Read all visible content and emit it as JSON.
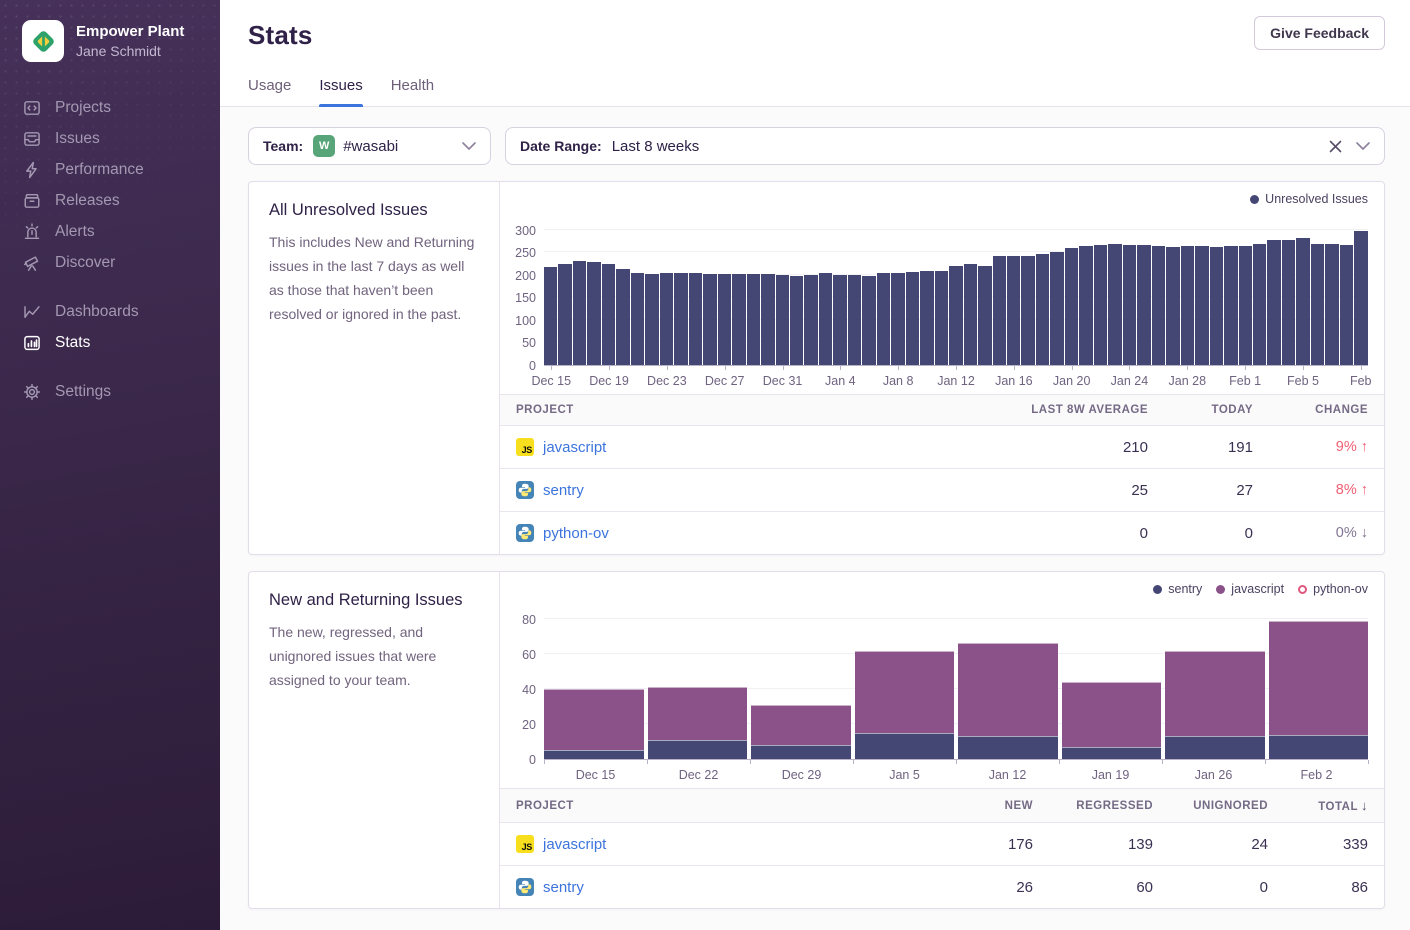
{
  "sidebar": {
    "org_name": "Empower Plant",
    "user_name": "Jane Schmidt",
    "sections": [
      {
        "items": [
          {
            "label": "Projects",
            "icon": "projects-icon",
            "active": false
          },
          {
            "label": "Issues",
            "icon": "issues-icon",
            "active": false
          },
          {
            "label": "Performance",
            "icon": "performance-icon",
            "active": false
          },
          {
            "label": "Releases",
            "icon": "releases-icon",
            "active": false
          },
          {
            "label": "Alerts",
            "icon": "alerts-icon",
            "active": false
          },
          {
            "label": "Discover",
            "icon": "discover-icon",
            "active": false
          }
        ]
      },
      {
        "items": [
          {
            "label": "Dashboards",
            "icon": "dashboards-icon",
            "active": false
          },
          {
            "label": "Stats",
            "icon": "stats-icon",
            "active": true
          }
        ]
      },
      {
        "items": [
          {
            "label": "Settings",
            "icon": "settings-icon",
            "active": false
          }
        ]
      }
    ]
  },
  "header": {
    "title": "Stats",
    "feedback_button": "Give Feedback"
  },
  "tabs": [
    {
      "label": "Usage",
      "active": false
    },
    {
      "label": "Issues",
      "active": true
    },
    {
      "label": "Health",
      "active": false
    }
  ],
  "filters": {
    "team_label": "Team:",
    "team_value": "#wasabi",
    "team_avatar_letter": "W",
    "team_avatar_color": "#57a578",
    "date_label": "Date Range:",
    "date_value": "Last 8 weeks"
  },
  "icons": {
    "js_badge_text": "JS"
  },
  "panels": [
    {
      "title": "All Unresolved Issues",
      "description": "This includes New and Returning issues in the last 7 days as well as those that haven’t been resolved or ignored in the past.",
      "table": {
        "columns": [
          "Project",
          "Last 8w Average",
          "Today",
          "Change"
        ],
        "rows": [
          {
            "project": "javascript",
            "platform": "javascript",
            "cells": [
              "210",
              "191"
            ],
            "change": {
              "value": "9%",
              "direction": "up",
              "color": "#ef5f73"
            }
          },
          {
            "project": "sentry",
            "platform": "python",
            "cells": [
              "25",
              "27"
            ],
            "change": {
              "value": "8%",
              "direction": "up",
              "color": "#ef5f73"
            }
          },
          {
            "project": "python-ov",
            "platform": "python",
            "cells": [
              "0",
              "0"
            ],
            "change": {
              "value": "0%",
              "direction": "down",
              "color": "#847592"
            }
          }
        ]
      }
    },
    {
      "title": "New and Returning Issues",
      "description": "The new, regressed, and unignored issues that were assigned to your team.",
      "table": {
        "columns": [
          "Project",
          "New",
          "Regressed",
          "Unignored",
          "Total"
        ],
        "sort_column": "Total",
        "sort_direction": "desc",
        "rows": [
          {
            "project": "javascript",
            "platform": "javascript",
            "cells": [
              "176",
              "139",
              "24",
              "339"
            ]
          },
          {
            "project": "sentry",
            "platform": "python",
            "cells": [
              "26",
              "60",
              "0",
              "86"
            ]
          }
        ]
      }
    }
  ],
  "chart_data": [
    {
      "type": "bar",
      "title": "All Unresolved Issues",
      "legend": [
        {
          "label": "Unresolved Issues",
          "color": "#444674"
        }
      ],
      "ylabel": "",
      "xlabel": "",
      "ylim": [
        0,
        300
      ],
      "yticks": [
        0,
        50,
        100,
        150,
        200,
        250,
        300
      ],
      "x_tick_labels": [
        "Dec 15",
        "Dec 19",
        "Dec 23",
        "Dec 27",
        "Dec 31",
        "Jan 4",
        "Jan 8",
        "Jan 12",
        "Jan 16",
        "Jan 20",
        "Jan 24",
        "Jan 28",
        "Feb 1",
        "Feb 5",
        "Feb"
      ],
      "x_tick_every": 4,
      "bar_color": "#444674",
      "values": [
        217,
        224,
        230,
        228,
        225,
        213,
        205,
        202,
        204,
        205,
        204,
        202,
        203,
        203,
        203,
        203,
        201,
        198,
        200,
        204,
        201,
        199,
        197,
        205,
        205,
        206,
        208,
        209,
        220,
        225,
        221,
        243,
        241,
        242,
        246,
        252,
        260,
        264,
        267,
        269,
        266,
        266,
        264,
        263,
        264,
        264,
        262,
        264,
        265,
        268,
        278,
        277,
        281,
        269,
        269,
        267,
        297
      ]
    },
    {
      "type": "stacked-bar",
      "title": "New and Returning Issues",
      "categories": [
        "Dec 15",
        "Dec 22",
        "Dec 29",
        "Jan 5",
        "Jan 12",
        "Jan 19",
        "Jan 26",
        "Feb 2"
      ],
      "ylim": [
        0,
        80
      ],
      "yticks": [
        0,
        20,
        40,
        60,
        80
      ],
      "legend_position": "top-right",
      "series": [
        {
          "name": "sentry",
          "color": "#444674",
          "values": [
            5,
            11,
            8,
            15,
            13,
            7,
            13,
            14
          ]
        },
        {
          "name": "javascript",
          "color": "#8a5289",
          "values": [
            35,
            30,
            23,
            47,
            53,
            37,
            49,
            65
          ]
        },
        {
          "name": "python-ov",
          "color": "#e1567c",
          "values": [
            0,
            0,
            0,
            0,
            0,
            0,
            0,
            0
          ]
        }
      ]
    }
  ]
}
